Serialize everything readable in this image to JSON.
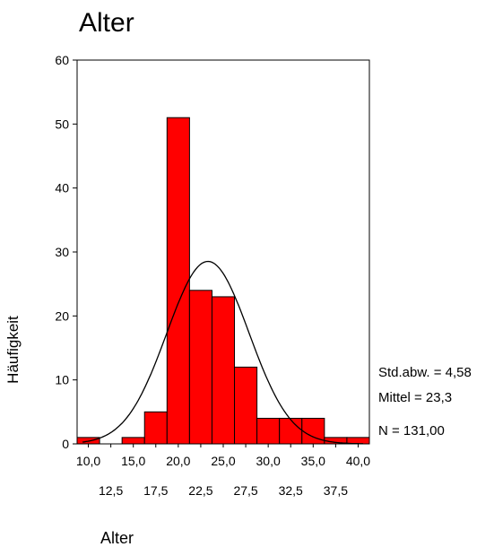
{
  "chart_data": {
    "type": "bar",
    "title": "Alter",
    "xlabel": "Alter",
    "ylabel": "Häufigkeit",
    "ylim": [
      0,
      60
    ],
    "yticks": [
      "0",
      "10",
      "20",
      "30",
      "40",
      "50",
      "60"
    ],
    "xlim": [
      8.75,
      41.25
    ],
    "xticks_top": [
      "10,0",
      "15,0",
      "20,0",
      "25,0",
      "30,0",
      "35,0",
      "40,0"
    ],
    "xticks_bottom": [
      "12,5",
      "17,5",
      "22,5",
      "27,5",
      "32,5",
      "37,5"
    ],
    "bins": [
      {
        "center": 10.0,
        "value": 1
      },
      {
        "center": 12.5,
        "value": 0
      },
      {
        "center": 15.0,
        "value": 1
      },
      {
        "center": 17.5,
        "value": 5
      },
      {
        "center": 20.0,
        "value": 51
      },
      {
        "center": 22.5,
        "value": 24
      },
      {
        "center": 25.0,
        "value": 23
      },
      {
        "center": 27.5,
        "value": 12
      },
      {
        "center": 30.0,
        "value": 4
      },
      {
        "center": 32.5,
        "value": 4
      },
      {
        "center": 35.0,
        "value": 4
      },
      {
        "center": 37.5,
        "value": 1
      },
      {
        "center": 40.0,
        "value": 1
      }
    ],
    "bin_width": 2.5,
    "bar_color": "#ff0000",
    "normal_curve": {
      "mean": 23.3,
      "sd": 4.58,
      "n": 131
    },
    "stats": {
      "sd_label": "Std.abw. = 4,58",
      "mean_label": "Mittel = 23,3",
      "n_label": "N = 131,00"
    }
  }
}
